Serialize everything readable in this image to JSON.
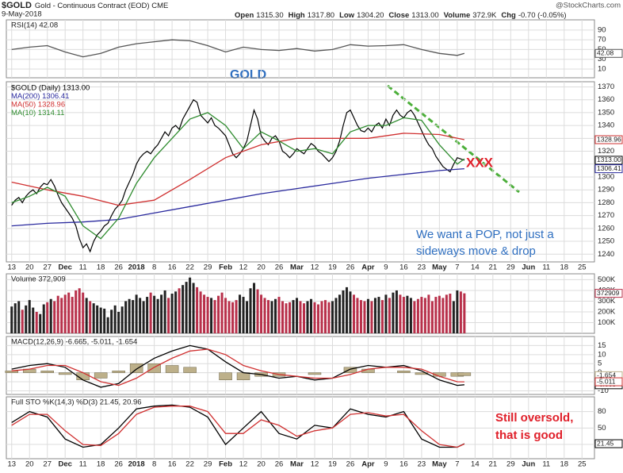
{
  "header": {
    "symbol": "$GOLD",
    "description": "Gold - Continuous Contract (EOD) CME",
    "date": "9-May-2018",
    "brand": "@StockCharts.com",
    "quote": [
      {
        "label": "Open",
        "value": "1315.30"
      },
      {
        "label": "High",
        "value": "1317.80"
      },
      {
        "label": "Low",
        "value": "1304.20"
      },
      {
        "label": "Close",
        "value": "1313.00"
      },
      {
        "label": "Volume",
        "value": "372.9K"
      },
      {
        "label": "Chg",
        "value": "-0.70 (-0.05%)"
      }
    ]
  },
  "chart_data": [
    {
      "type": "line",
      "title": "GOLD",
      "annotations": [
        "XXX",
        "We want a POP, not just a",
        "sideways move & drop"
      ],
      "xlim": [
        -1.5,
        163.5
      ],
      "xticks": [
        {
          "value": 0,
          "label": "13"
        },
        {
          "value": 5,
          "label": "20"
        },
        {
          "value": 10,
          "label": "27"
        },
        {
          "value": 15,
          "label": "Dec"
        },
        {
          "value": 20,
          "label": "11"
        },
        {
          "value": 25,
          "label": "18"
        },
        {
          "value": 30,
          "label": "26"
        },
        {
          "value": 35,
          "label": "2018"
        },
        {
          "value": 40,
          "label": "8"
        },
        {
          "value": 45,
          "label": "16"
        },
        {
          "value": 50,
          "label": "22"
        },
        {
          "value": 55,
          "label": "29"
        },
        {
          "value": 60,
          "label": "Feb"
        },
        {
          "value": 65,
          "label": "12"
        },
        {
          "value": 70,
          "label": "20"
        },
        {
          "value": 75,
          "label": "26"
        },
        {
          "value": 80,
          "label": "Mar"
        },
        {
          "value": 85,
          "label": "12"
        },
        {
          "value": 90,
          "label": "19"
        },
        {
          "value": 95,
          "label": "26"
        },
        {
          "value": 100,
          "label": "Apr"
        },
        {
          "value": 105,
          "label": "9"
        },
        {
          "value": 110,
          "label": "16"
        },
        {
          "value": 115,
          "label": "23"
        },
        {
          "value": 120,
          "label": "May"
        },
        {
          "value": 125,
          "label": "7"
        },
        {
          "value": 130,
          "label": "14"
        },
        {
          "value": 135,
          "label": "21"
        },
        {
          "value": 140,
          "label": "29"
        },
        {
          "value": 145,
          "label": "Jun"
        },
        {
          "value": 150,
          "label": "11"
        },
        {
          "value": 155,
          "label": "18"
        },
        {
          "value": 160,
          "label": "25"
        }
      ],
      "ylim": [
        1234,
        1374
      ],
      "yticks": [
        1240,
        1250,
        1260,
        1270,
        1280,
        1290,
        1300,
        1310,
        1320,
        1330,
        1340,
        1350,
        1360,
        1370
      ],
      "grid": true,
      "series": [
        {
          "name": "$GOLD (Daily) 1313.00",
          "color": "#000000",
          "last_label": "1313.00",
          "values": [
            1278,
            1282,
            1284,
            1280,
            1285,
            1288,
            1290,
            1287,
            1292,
            1295,
            1294,
            1298,
            1293,
            1286,
            1280,
            1276,
            1272,
            1268,
            1262,
            1252,
            1245,
            1248,
            1242,
            1250,
            1255,
            1258,
            1262,
            1264,
            1270,
            1275,
            1278,
            1282,
            1290,
            1296,
            1302,
            1310,
            1315,
            1318,
            1320,
            1318,
            1322,
            1325,
            1330,
            1335,
            1332,
            1338,
            1340,
            1337,
            1345,
            1350,
            1355,
            1360,
            1358,
            1348,
            1345,
            1342,
            1346,
            1340,
            1338,
            1335,
            1332,
            1325,
            1318,
            1315,
            1318,
            1322,
            1328,
            1340,
            1352,
            1345,
            1332,
            1328,
            1325,
            1330,
            1332,
            1328,
            1320,
            1318,
            1315,
            1318,
            1322,
            1320,
            1318,
            1322,
            1326,
            1324,
            1320,
            1318,
            1315,
            1312,
            1315,
            1320,
            1328,
            1340,
            1350,
            1352,
            1346,
            1340,
            1336,
            1335,
            1338,
            1335,
            1340,
            1342,
            1338,
            1345,
            1340,
            1348,
            1352,
            1348,
            1346,
            1350,
            1352,
            1348,
            1342,
            1336,
            1330,
            1325,
            1322,
            1316,
            1312,
            1308,
            1306,
            1304,
            1310,
            1315,
            1314,
            1313
          ]
        },
        {
          "name": "MA(200) 1306.41",
          "color": "#2a2a9e",
          "last_label": "1306.41",
          "x": [
            0,
            10,
            20,
            30,
            40,
            50,
            60,
            70,
            80,
            90,
            100,
            110,
            120,
            127
          ],
          "values": [
            1262,
            1264,
            1265,
            1267,
            1272,
            1277,
            1282,
            1287,
            1291,
            1295,
            1299,
            1302,
            1305,
            1306.41
          ]
        },
        {
          "name": "MA(50) 1328.96",
          "color": "#d03030",
          "last_label": "1328.96",
          "x": [
            0,
            10,
            20,
            30,
            40,
            50,
            60,
            70,
            80,
            90,
            100,
            110,
            120,
            127
          ],
          "values": [
            1296,
            1290,
            1285,
            1278,
            1282,
            1298,
            1315,
            1325,
            1330,
            1330,
            1330,
            1334,
            1333,
            1328.96
          ]
        },
        {
          "name": "MA(10) 1314.11",
          "color": "#2e8b2e",
          "x": [
            0,
            5,
            10,
            15,
            20,
            25,
            30,
            35,
            40,
            45,
            50,
            55,
            60,
            65,
            70,
            75,
            80,
            85,
            90,
            95,
            100,
            105,
            110,
            115,
            120,
            125,
            127
          ],
          "values": [
            1280,
            1285,
            1292,
            1285,
            1262,
            1252,
            1268,
            1295,
            1315,
            1330,
            1345,
            1350,
            1340,
            1322,
            1335,
            1328,
            1320,
            1322,
            1318,
            1335,
            1340,
            1340,
            1346,
            1344,
            1325,
            1310,
            1314.11
          ]
        }
      ]
    },
    {
      "type": "line",
      "title": "RSI(14) 42.08",
      "ylim": [
        -8,
        111
      ],
      "yticks": [
        10,
        30,
        50,
        70,
        90
      ],
      "grid": true,
      "series": [
        {
          "name": "RSI(14)",
          "color": "#555555",
          "last_label": "42.08",
          "x": [
            0,
            5,
            10,
            15,
            20,
            25,
            30,
            35,
            40,
            45,
            50,
            55,
            60,
            65,
            70,
            75,
            80,
            85,
            90,
            95,
            100,
            105,
            110,
            115,
            120,
            125,
            127
          ],
          "values": [
            50,
            55,
            58,
            45,
            35,
            42,
            55,
            62,
            66,
            70,
            68,
            58,
            45,
            55,
            50,
            48,
            52,
            47,
            50,
            60,
            57,
            58,
            60,
            50,
            42,
            38,
            42.08
          ]
        }
      ]
    },
    {
      "type": "bar",
      "title": "Volume 372,909",
      "ylim": [
        0,
        555000
      ],
      "yticks": [
        {
          "value": 100000,
          "label": "100K"
        },
        {
          "value": 200000,
          "label": "200K"
        },
        {
          "value": 300000,
          "label": "300K"
        },
        {
          "value": 400000,
          "label": "400K"
        },
        {
          "value": 500000,
          "label": "500K"
        }
      ],
      "grid": true,
      "up_color": "#222222",
      "down_color": "#b8304a",
      "series": [
        {
          "name": "Volume",
          "color": "#b8304a",
          "last_label": "372909",
          "values": [
            250000,
            280000,
            300000,
            220000,
            260000,
            310000,
            240000,
            200000,
            180000,
            270000,
            290000,
            320000,
            300000,
            350000,
            330000,
            360000,
            380000,
            340000,
            400000,
            420000,
            380000,
            330000,
            300000,
            280000,
            260000,
            240000,
            230000,
            150000,
            220000,
            260000,
            200000,
            250000,
            300000,
            320000,
            310000,
            360000,
            330000,
            300000,
            340000,
            380000,
            350000,
            320000,
            360000,
            400000,
            330000,
            370000,
            390000,
            420000,
            450000,
            480000,
            520000,
            470000,
            430000,
            390000,
            360000,
            340000,
            330000,
            310000,
            350000,
            380000,
            330000,
            300000,
            290000,
            310000,
            360000,
            340000,
            300000,
            420000,
            470000,
            410000,
            360000,
            330000,
            310000,
            300000,
            320000,
            340000,
            300000,
            280000,
            290000,
            310000,
            330000,
            300000,
            280000,
            300000,
            320000,
            290000,
            270000,
            300000,
            310000,
            290000,
            300000,
            330000,
            360000,
            400000,
            430000,
            390000,
            360000,
            330000,
            310000,
            300000,
            320000,
            300000,
            330000,
            340000,
            310000,
            360000,
            330000,
            380000,
            400000,
            360000,
            340000,
            350000,
            330000,
            300000,
            320000,
            340000,
            330000,
            360000,
            300000,
            340000,
            350000,
            330000,
            360000,
            370000,
            300000,
            400000,
            390000,
            372909
          ]
        }
      ]
    },
    {
      "type": "line",
      "title": "MACD(12,26,9) -6.665, -5.011, -1.654",
      "ylim": [
        -12,
        20
      ],
      "yticks": [
        -10,
        -5,
        0,
        5,
        10,
        15
      ],
      "grid": true,
      "series": [
        {
          "name": "Histogram",
          "type": "bar",
          "color": "#bdb08a",
          "last_label": "-1.654",
          "x": [
            0,
            5,
            10,
            15,
            20,
            25,
            30,
            35,
            40,
            45,
            50,
            55,
            60,
            65,
            70,
            75,
            80,
            85,
            90,
            95,
            100,
            105,
            110,
            115,
            120,
            125,
            127
          ],
          "values": [
            1,
            2,
            1,
            -1,
            -4,
            -3,
            1,
            5,
            5,
            4,
            3,
            0,
            -4,
            -4,
            -2,
            -2,
            0,
            -1,
            0,
            3,
            2,
            0,
            1,
            -1,
            -2,
            -2,
            -1.654
          ]
        },
        {
          "name": "MACD",
          "color": "#000000",
          "last_label": "-6.665",
          "x": [
            0,
            5,
            10,
            15,
            20,
            25,
            30,
            35,
            40,
            45,
            50,
            55,
            60,
            65,
            70,
            75,
            80,
            85,
            90,
            95,
            100,
            105,
            110,
            115,
            120,
            125,
            127
          ],
          "values": [
            2,
            4,
            5,
            3,
            -4,
            -8,
            -6,
            2,
            8,
            12,
            15,
            13,
            6,
            0,
            -1,
            -3,
            -2,
            -4,
            -3,
            2,
            4,
            3,
            4,
            1,
            -4,
            -7,
            -6.665
          ]
        },
        {
          "name": "Signal",
          "color": "#d03030",
          "last_label": "-5.011",
          "x": [
            0,
            5,
            10,
            15,
            20,
            25,
            30,
            35,
            40,
            45,
            50,
            55,
            60,
            65,
            70,
            75,
            80,
            85,
            90,
            95,
            100,
            105,
            110,
            115,
            120,
            125,
            127
          ],
          "values": [
            1,
            2,
            4,
            4,
            0,
            -5,
            -7,
            -3,
            3,
            8,
            12,
            13,
            10,
            4,
            1,
            -1,
            -2,
            -3,
            -3,
            -1,
            2,
            3,
            3,
            2,
            -2,
            -5,
            -5.011
          ]
        }
      ]
    },
    {
      "type": "line",
      "title": "Full STO %K(14,3) %D(3) 21.45, 20.96",
      "ylim": [
        -6,
        107
      ],
      "yticks": [
        20,
        50,
        80
      ],
      "grid": true,
      "annotations": [
        "Still oversold,",
        "that is good"
      ],
      "series": [
        {
          "name": "%K",
          "color": "#000000",
          "last_label": "21.45",
          "x": [
            0,
            5,
            10,
            15,
            20,
            25,
            30,
            35,
            40,
            45,
            50,
            55,
            60,
            65,
            70,
            75,
            80,
            85,
            90,
            95,
            100,
            105,
            110,
            115,
            120,
            125,
            127
          ],
          "values": [
            60,
            80,
            70,
            30,
            15,
            20,
            50,
            85,
            90,
            92,
            88,
            70,
            20,
            50,
            80,
            40,
            30,
            55,
            50,
            85,
            75,
            70,
            80,
            30,
            15,
            15,
            21.45
          ]
        },
        {
          "name": "%D",
          "color": "#d03030",
          "x": [
            0,
            5,
            10,
            15,
            20,
            25,
            30,
            35,
            40,
            45,
            50,
            55,
            60,
            65,
            70,
            75,
            80,
            85,
            90,
            95,
            100,
            105,
            110,
            115,
            120,
            125,
            127
          ],
          "values": [
            55,
            75,
            75,
            45,
            20,
            18,
            40,
            75,
            88,
            90,
            90,
            80,
            40,
            40,
            65,
            55,
            35,
            45,
            50,
            75,
            78,
            72,
            75,
            45,
            20,
            15,
            20.96
          ]
        }
      ]
    }
  ]
}
